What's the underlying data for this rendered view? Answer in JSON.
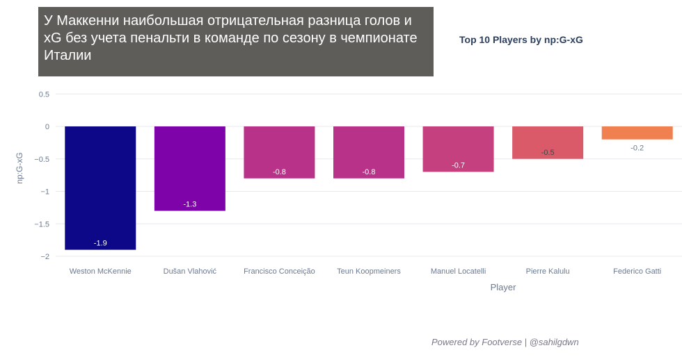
{
  "caption": "У Маккенни наибольшая отрицательная разница голов и xG без учета пенальти в команде по сезону в чемпионате Италии",
  "footer": "Powered by Footverse | @sahilgdwn",
  "chart_data": {
    "type": "bar",
    "title": "Top 10 Players by np:G-xG",
    "xlabel": "Player",
    "ylabel": "np:G-xG",
    "ylim": [
      -2,
      0.5
    ],
    "yticks": [
      0.5,
      0,
      -0.5,
      -1,
      -1.5,
      -2
    ],
    "ytick_labels": [
      "0.5",
      "0",
      "−0.5",
      "−1",
      "−1.5",
      "−2"
    ],
    "grid": true,
    "categories": [
      "Weston McKennie",
      "Dušan Vlahović",
      "Francisco Conceição",
      "Teun Koopmeiners",
      "Manuel Locatelli",
      "Pierre Kalulu",
      "Federico Gatti"
    ],
    "values": [
      -1.9,
      -1.3,
      -0.8,
      -0.8,
      -0.7,
      -0.5,
      -0.2
    ],
    "data_labels": [
      "-1.9",
      "-1.3",
      "-0.8",
      "-0.8",
      "-0.7",
      "-0.5",
      "-0.2"
    ],
    "colors": [
      "#0d0887",
      "#7e03a8",
      "#b83289",
      "#b83289",
      "#c5407e",
      "#da5a6a",
      "#f0804f"
    ]
  }
}
